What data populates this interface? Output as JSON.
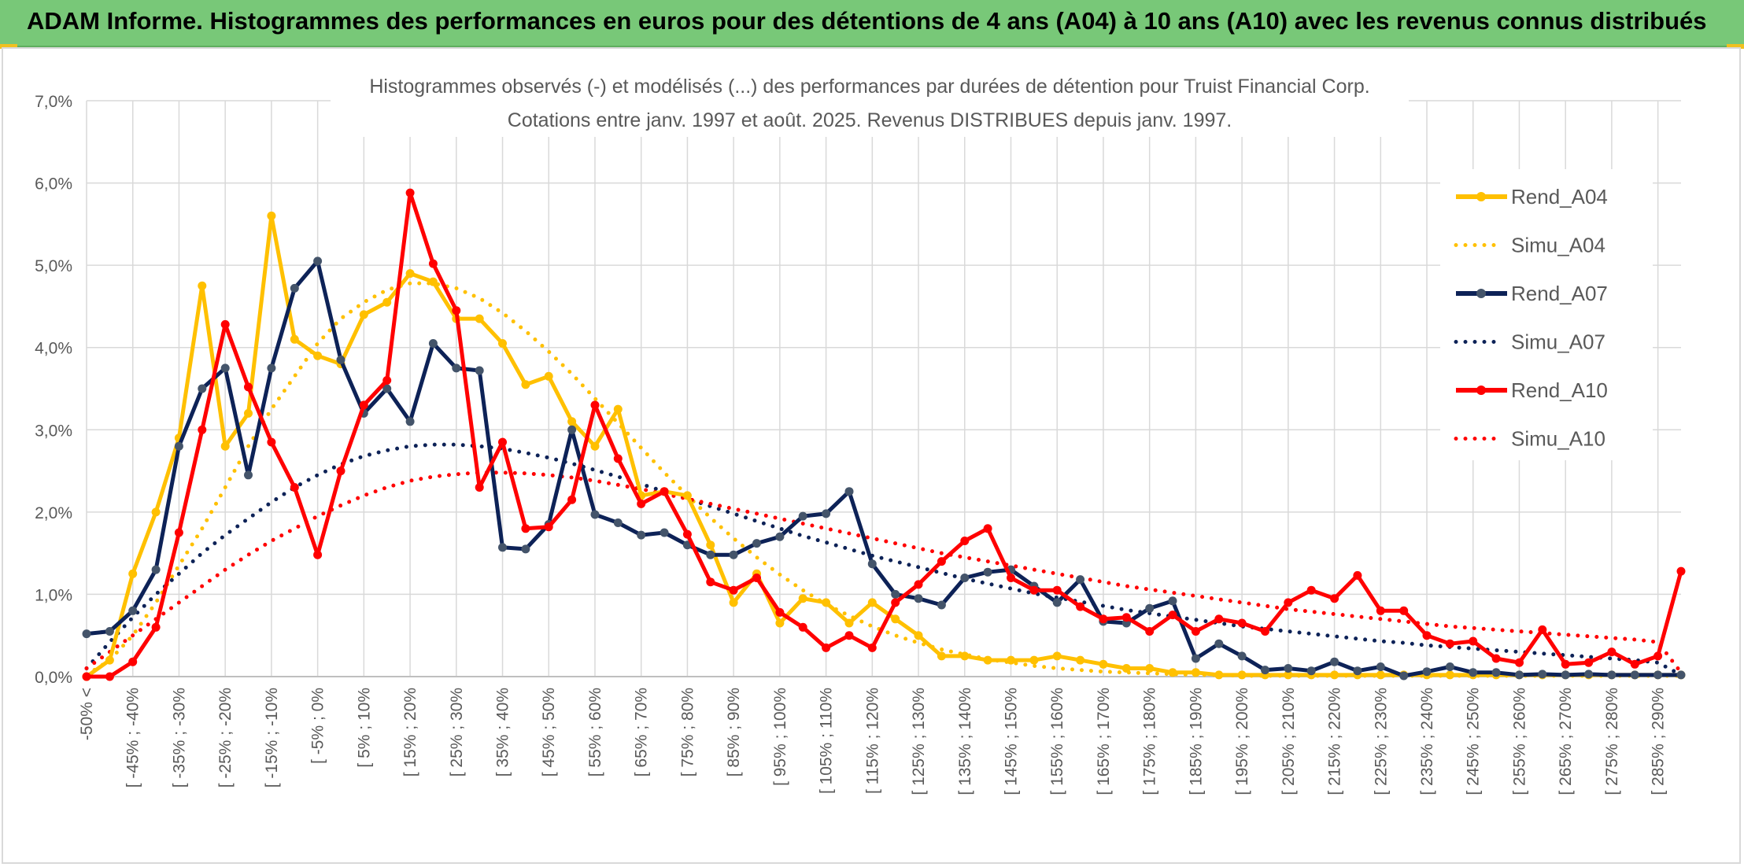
{
  "header": {
    "title": "ADAM Informe. Histogrammes des performances en euros pour des détentions de 4 ans (A04) à 10 ans (A10) avec les revenus connus distribués"
  },
  "chart_data": {
    "type": "line",
    "title": "Histogrammes observés (-) et modélisés (...) des performances par durées de détention pour Truist Financial Corp.",
    "subtitle": "Cotations entre janv. 1997 et août. 2025. Revenus DISTRIBUES depuis janv. 1997.",
    "xlabel": "",
    "ylabel": "",
    "ylim": [
      0,
      7
    ],
    "yticks": [
      "0,0%",
      "1,0%",
      "2,0%",
      "3,0%",
      "4,0%",
      "5,0%",
      "6,0%",
      "7,0%"
    ],
    "grid": true,
    "legend_position": "right",
    "x_tick_labels": [
      "-50% <",
      "[ -45% ; -40%",
      "[ -35% ; -30%",
      "[ -25% ; -20%",
      "[ -15% ; -10%",
      "[ -5% ; 0%",
      "[ 5% ; 10%",
      "[ 15% ; 20%",
      "[ 25% ; 30%",
      "[ 35% ; 40%",
      "[ 45% ; 50%",
      "[ 55% ; 60%",
      "[ 65% ; 70%",
      "[ 75% ; 80%",
      "[ 85% ; 90%",
      "[ 95% ; 100%",
      "[ 105% ; 110%",
      "[ 115% ; 120%",
      "[ 125% ; 130%",
      "[ 135% ; 140%",
      "[ 145% ; 150%",
      "[ 155% ; 160%",
      "[ 165% ; 170%",
      "[ 175% ; 180%",
      "[ 185% ; 190%",
      "[ 195% ; 200%",
      "[ 205% ; 210%",
      "[ 215% ; 220%",
      "[ 225% ; 230%",
      "[ 235% ; 240%",
      "[ 245% ; 250%",
      "[ 255% ; 260%",
      "[ 265% ; 270%",
      "[ 275% ; 280%",
      "[ 285% ; 290%"
    ],
    "series": [
      {
        "name": "Rend_A04",
        "color": "#ffc000",
        "style": "solid-markers",
        "values": [
          0.0,
          0.2,
          1.25,
          2.0,
          2.9,
          4.75,
          2.8,
          3.2,
          5.6,
          4.1,
          3.9,
          3.8,
          4.4,
          4.55,
          4.9,
          4.8,
          4.35,
          4.35,
          4.05,
          3.55,
          3.65,
          3.1,
          2.8,
          3.25,
          2.2,
          2.25,
          2.2,
          1.6,
          0.9,
          1.25,
          0.65,
          0.95,
          0.9,
          0.65,
          0.9,
          0.7,
          0.5,
          0.25,
          0.25,
          0.2,
          0.2,
          0.2,
          0.25,
          0.2,
          0.15,
          0.1,
          0.1,
          0.05,
          0.05,
          0.02,
          0.02,
          0.02,
          0.02,
          0.02,
          0.02,
          0.02,
          0.02,
          0.02,
          0.02,
          0.02,
          0.02,
          0.02,
          0.02,
          0.02,
          0.02,
          0.02,
          0.02,
          0.02,
          0.02,
          0.02
        ]
      },
      {
        "name": "Simu_A04",
        "color": "#ffc000",
        "style": "dotted",
        "values": [
          0.02,
          0.2,
          0.5,
          0.9,
          1.35,
          1.8,
          2.3,
          2.8,
          3.25,
          3.65,
          4.05,
          4.35,
          4.55,
          4.7,
          4.78,
          4.78,
          4.72,
          4.6,
          4.42,
          4.2,
          3.95,
          3.68,
          3.38,
          3.08,
          2.78,
          2.48,
          2.2,
          1.93,
          1.68,
          1.45,
          1.24,
          1.05,
          0.88,
          0.74,
          0.61,
          0.5,
          0.41,
          0.33,
          0.27,
          0.21,
          0.17,
          0.13,
          0.1,
          0.08,
          0.06,
          0.05,
          0.04,
          0.03,
          0.02,
          0.02,
          0.01,
          0.01,
          0.01,
          0.01,
          0.01,
          0.01,
          0.01,
          0.01,
          0.01,
          0.01,
          0.01,
          0.01,
          0.01,
          0.01,
          0.01,
          0.01,
          0.01,
          0.01,
          0.01,
          0.01
        ]
      },
      {
        "name": "Rend_A07",
        "color": "#0d2257",
        "style": "solid-markers",
        "values": [
          0.52,
          0.55,
          0.8,
          1.3,
          2.8,
          3.5,
          3.75,
          2.45,
          3.75,
          4.72,
          5.05,
          3.85,
          3.2,
          3.5,
          3.1,
          4.05,
          3.75,
          3.72,
          1.57,
          1.55,
          1.85,
          3.0,
          1.97,
          1.87,
          1.72,
          1.75,
          1.6,
          1.48,
          1.48,
          1.62,
          1.7,
          1.95,
          1.98,
          2.25,
          1.37,
          1.0,
          0.95,
          0.87,
          1.2,
          1.27,
          1.3,
          1.1,
          0.9,
          1.18,
          0.67,
          0.65,
          0.83,
          0.92,
          0.22,
          0.4,
          0.25,
          0.08,
          0.1,
          0.07,
          0.18,
          0.07,
          0.12,
          0.01,
          0.06,
          0.12,
          0.05,
          0.05,
          0.02,
          0.03,
          0.02,
          0.03,
          0.02,
          0.02,
          0.02,
          0.02
        ]
      },
      {
        "name": "Simu_A07",
        "color": "#0d2257",
        "style": "dotted",
        "values": [
          0.1,
          0.42,
          0.72,
          1.0,
          1.25,
          1.5,
          1.72,
          1.92,
          2.12,
          2.3,
          2.45,
          2.58,
          2.68,
          2.75,
          2.8,
          2.82,
          2.82,
          2.8,
          2.77,
          2.72,
          2.66,
          2.59,
          2.51,
          2.43,
          2.34,
          2.25,
          2.16,
          2.07,
          1.98,
          1.89,
          1.8,
          1.71,
          1.63,
          1.55,
          1.47,
          1.4,
          1.33,
          1.26,
          1.19,
          1.13,
          1.07,
          1.01,
          0.96,
          0.91,
          0.86,
          0.81,
          0.77,
          0.73,
          0.69,
          0.65,
          0.61,
          0.58,
          0.55,
          0.52,
          0.49,
          0.46,
          0.43,
          0.41,
          0.38,
          0.36,
          0.34,
          0.32,
          0.3,
          0.28,
          0.26,
          0.24,
          0.22,
          0.2,
          0.17,
          0.02
        ]
      },
      {
        "name": "Rend_A10",
        "color": "#ff0000",
        "style": "solid-markers",
        "values": [
          0.0,
          0.0,
          0.18,
          0.6,
          1.75,
          3.0,
          4.28,
          3.52,
          2.85,
          2.3,
          1.48,
          2.5,
          3.3,
          3.6,
          5.88,
          5.02,
          4.45,
          2.3,
          2.85,
          1.8,
          1.82,
          2.15,
          3.3,
          2.65,
          2.1,
          2.25,
          1.73,
          1.15,
          1.05,
          1.2,
          0.78,
          0.6,
          0.35,
          0.5,
          0.35,
          0.9,
          1.12,
          1.4,
          1.65,
          1.8,
          1.2,
          1.05,
          1.05,
          0.85,
          0.7,
          0.72,
          0.55,
          0.75,
          0.55,
          0.7,
          0.65,
          0.55,
          0.9,
          1.05,
          0.95,
          1.23,
          0.8,
          0.8,
          0.5,
          0.4,
          0.43,
          0.22,
          0.17,
          0.57,
          0.15,
          0.17,
          0.3,
          0.15,
          0.25,
          1.28
        ]
      },
      {
        "name": "Simu_A10",
        "color": "#ff0000",
        "style": "dotted",
        "values": [
          0.1,
          0.3,
          0.5,
          0.7,
          0.9,
          1.1,
          1.3,
          1.48,
          1.65,
          1.8,
          1.95,
          2.08,
          2.2,
          2.3,
          2.38,
          2.43,
          2.46,
          2.48,
          2.48,
          2.47,
          2.45,
          2.42,
          2.38,
          2.33,
          2.28,
          2.22,
          2.16,
          2.1,
          2.04,
          1.98,
          1.92,
          1.86,
          1.8,
          1.74,
          1.68,
          1.62,
          1.56,
          1.5,
          1.45,
          1.4,
          1.35,
          1.3,
          1.25,
          1.2,
          1.15,
          1.1,
          1.06,
          1.02,
          0.98,
          0.94,
          0.9,
          0.86,
          0.82,
          0.79,
          0.76,
          0.73,
          0.7,
          0.67,
          0.64,
          0.61,
          0.59,
          0.57,
          0.55,
          0.53,
          0.51,
          0.49,
          0.47,
          0.45,
          0.42,
          0.05
        ]
      }
    ]
  }
}
